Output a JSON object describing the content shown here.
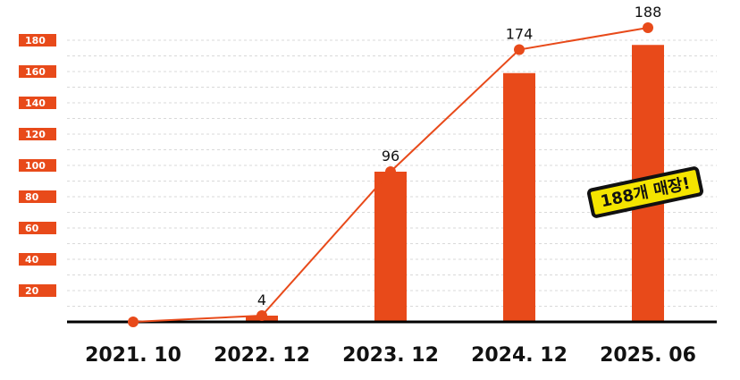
{
  "colors": {
    "accent": "#e84a1a",
    "grid": "#d9d9d9",
    "baseline": "#000000",
    "text": "#111111",
    "callout_bg": "#f4e400"
  },
  "chart_data": {
    "type": "bar",
    "title": "",
    "xlabel": "",
    "ylabel": "",
    "categories": [
      "2021. 10",
      "2022. 12",
      "2023. 12",
      "2024. 12",
      "2025. 06"
    ],
    "series": [
      {
        "type": "bar",
        "values": [
          0,
          4,
          96,
          159,
          177
        ]
      },
      {
        "type": "line",
        "values": [
          0,
          4,
          96,
          174,
          188
        ],
        "labels": [
          "",
          "4",
          "96",
          "174",
          "188"
        ]
      }
    ],
    "yticks": [
      20,
      40,
      60,
      80,
      100,
      120,
      140,
      160,
      180
    ],
    "ylim": [
      0,
      180
    ],
    "grid": true,
    "callout": {
      "text": "188개 매장!"
    }
  }
}
